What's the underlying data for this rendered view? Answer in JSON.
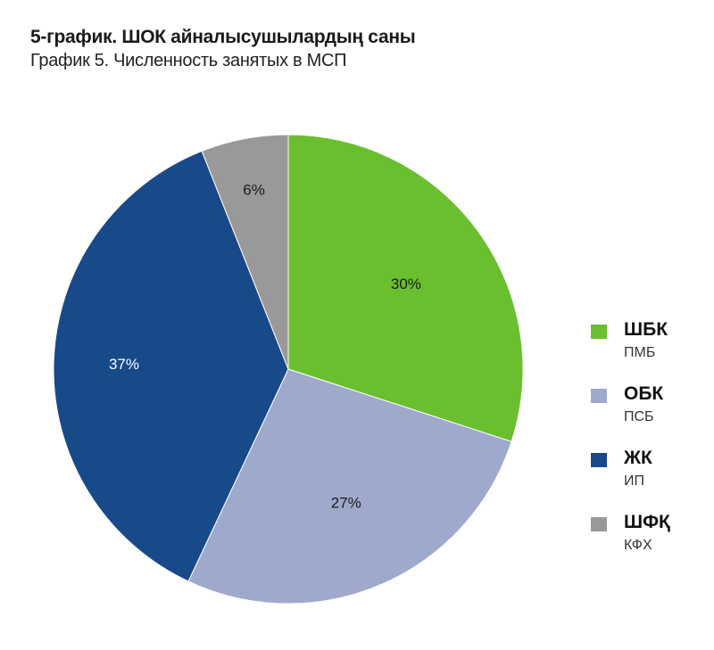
{
  "header": {
    "title": "5-график. ШОК айналысушылардың саны",
    "subtitle": "График 5. Численность занятых в МСП"
  },
  "colors": {
    "shbk": "#6abf2e",
    "obk": "#9ea9cc",
    "zhk": "#184a8a",
    "shfk": "#999999"
  },
  "legend": [
    {
      "main": "ШБК",
      "sub": "ПМБ",
      "color": "#6abf2e"
    },
    {
      "main": "ОБК",
      "sub": "ПСБ",
      "color": "#9ea9cc"
    },
    {
      "main": "ЖК",
      "sub": "ИП",
      "color": "#184a8a"
    },
    {
      "main": "ШФҚ",
      "sub": "КФХ",
      "color": "#999999"
    }
  ],
  "chart_data": {
    "type": "pie",
    "title": "5-график. ШОК айналысушылардың саны",
    "subtitle": "График 5. Численность занятых в МСП",
    "categories": [
      "ШБК (ПМБ)",
      "ОБК (ПСБ)",
      "ЖК (ИП)",
      "ШФҚ (КФХ)"
    ],
    "values": [
      30,
      27,
      37,
      6
    ],
    "labels": [
      "30%",
      "27%",
      "37%",
      "6%"
    ],
    "colors": [
      "#6abf2e",
      "#9ea9cc",
      "#184a8a",
      "#999999"
    ],
    "start_angle": "12 o'clock, clockwise",
    "legend_position": "right"
  }
}
